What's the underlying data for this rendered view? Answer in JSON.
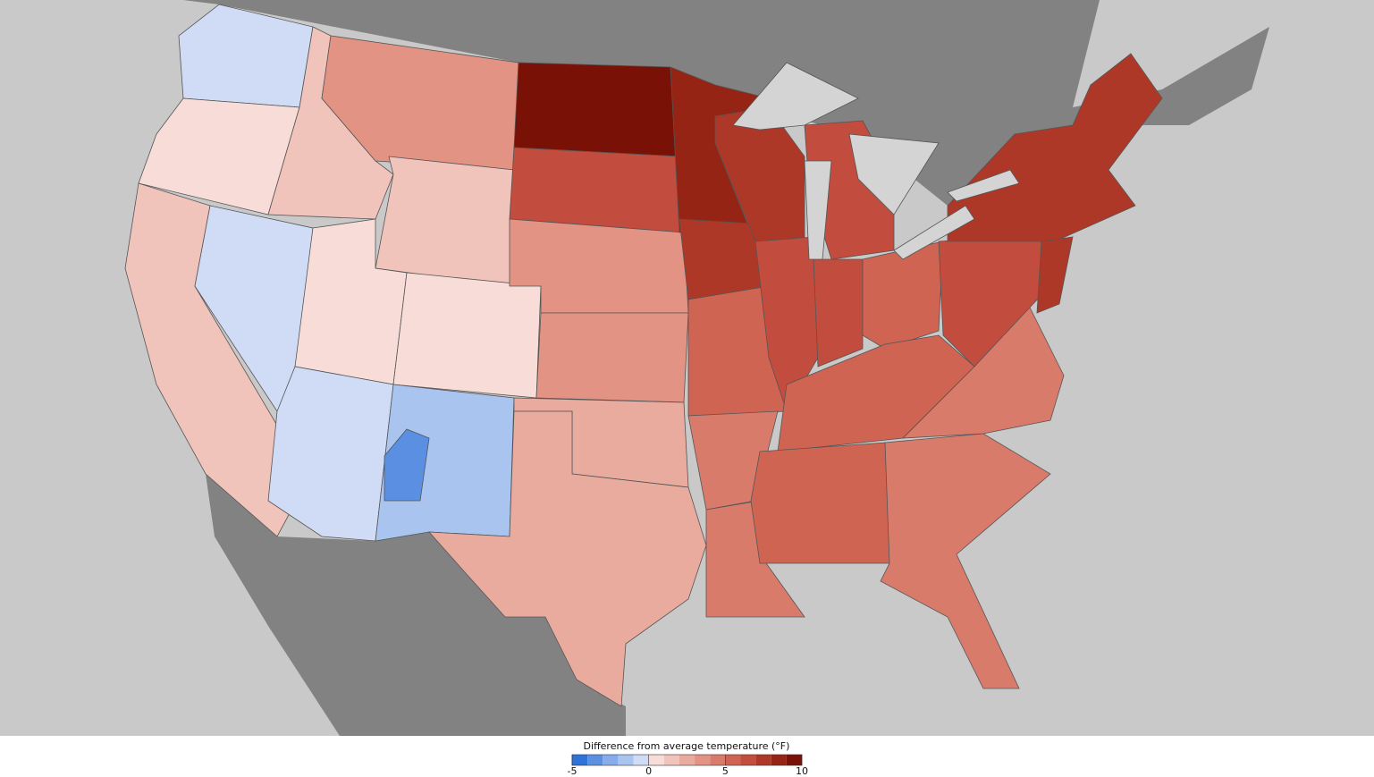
{
  "legend": {
    "title": "Difference from average temperature (°F)",
    "bins": [
      -5,
      -4,
      -3,
      -2,
      -1,
      0,
      1,
      2,
      3,
      4,
      5,
      6,
      7,
      8,
      9,
      10
    ],
    "colors": [
      "#2e74d8",
      "#5a8fe2",
      "#86aceb",
      "#aac4f0",
      "#d0dcf6",
      "#f7dcd8",
      "#f0c3bb",
      "#eaab9f",
      "#e29384",
      "#d97b6b",
      "#cf6453",
      "#c24c3e",
      "#ae3828",
      "#952415",
      "#7a1107"
    ],
    "ticks": [
      -5,
      0,
      5,
      10
    ]
  },
  "map": {
    "region_values": [
      -1,
      0.5,
      1,
      -0.5,
      1.5,
      3,
      1.5,
      0.5,
      0.5,
      -0.5,
      -1.5,
      -4,
      9.5,
      6,
      3,
      3,
      2.5,
      2,
      8.5,
      7,
      5.5,
      4,
      4.5,
      7.5,
      6.5,
      6.5,
      6,
      5.5,
      5,
      5,
      4,
      4.5,
      6,
      7,
      7.5
    ]
  }
}
